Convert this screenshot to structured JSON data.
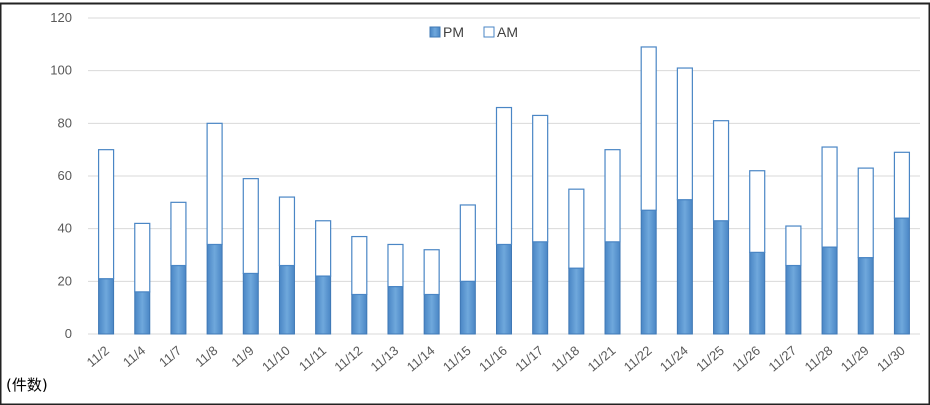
{
  "chart_data": {
    "type": "bar",
    "stacked": true,
    "categories": [
      "11/2",
      "11/4",
      "11/7",
      "11/8",
      "11/9",
      "11/10",
      "11/11",
      "11/12",
      "11/13",
      "11/14",
      "11/15",
      "11/16",
      "11/17",
      "11/18",
      "11/21",
      "11/22",
      "11/24",
      "11/25",
      "11/26",
      "11/27",
      "11/28",
      "11/29",
      "11/30"
    ],
    "series": [
      {
        "name": "PM",
        "color": "#5b9bd5",
        "values": [
          21,
          16,
          26,
          34,
          23,
          26,
          22,
          15,
          18,
          15,
          20,
          34,
          35,
          25,
          35,
          47,
          51,
          43,
          31,
          26,
          33,
          29,
          44
        ]
      },
      {
        "name": "AM",
        "color": "#ffffff",
        "values": [
          49,
          26,
          24,
          46,
          36,
          26,
          21,
          22,
          16,
          17,
          29,
          52,
          48,
          30,
          35,
          62,
          50,
          38,
          31,
          15,
          38,
          34,
          25
        ]
      }
    ],
    "ylim": [
      0,
      120
    ],
    "yticks": [
      0,
      20,
      40,
      60,
      80,
      100,
      120
    ],
    "ylabel": "(件数)",
    "legend_position": "top-center",
    "grid": true
  }
}
